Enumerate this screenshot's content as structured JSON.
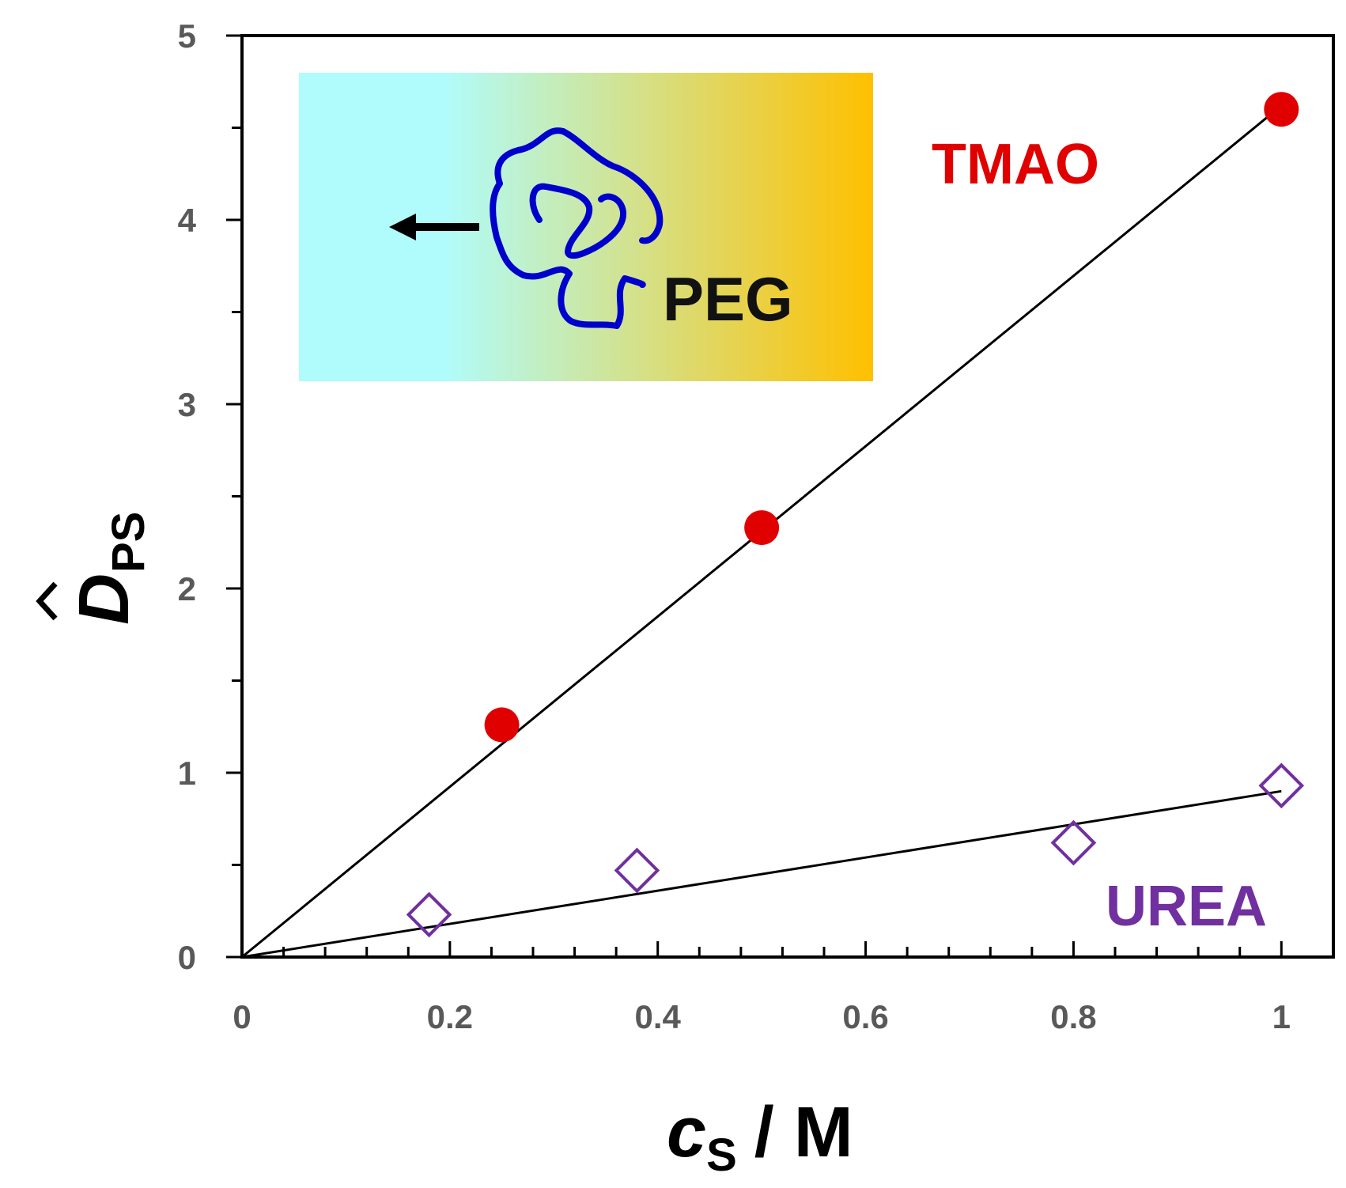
{
  "chart_data": {
    "type": "scatter",
    "xlabel": "c",
    "xlabel_sub": "S",
    "xlabel_unit": "/ M",
    "ylabel": "D",
    "ylabel_sub": "PS",
    "xlim": [
      0,
      1.05
    ],
    "ylim": [
      0,
      5
    ],
    "xticks": [
      "0",
      "0.2",
      "0.4",
      "0.6",
      "0.8",
      "1"
    ],
    "yticks": [
      "0",
      "1",
      "2",
      "3",
      "4",
      "5"
    ],
    "series": [
      {
        "name": "TMAO",
        "marker": "filled-circle",
        "color": "#e00000",
        "x": [
          0.25,
          0.5,
          1.0
        ],
        "y": [
          1.26,
          2.33,
          4.6
        ],
        "fit": {
          "x": [
            0,
            1.0
          ],
          "y": [
            0,
            4.62
          ]
        }
      },
      {
        "name": "UREA",
        "marker": "open-diamond",
        "color": "#7030a0",
        "x": [
          0.18,
          0.38,
          0.8,
          1.0
        ],
        "y": [
          0.23,
          0.47,
          0.62,
          0.93
        ],
        "fit": {
          "x": [
            0,
            1.0
          ],
          "y": [
            0,
            0.9
          ]
        }
      }
    ],
    "inset": {
      "label": "PEG",
      "gradient": [
        "#b0fcfc",
        "#ffc000"
      ],
      "icons": [
        "arrow-left-icon",
        "polymer-coil-icon"
      ]
    }
  }
}
